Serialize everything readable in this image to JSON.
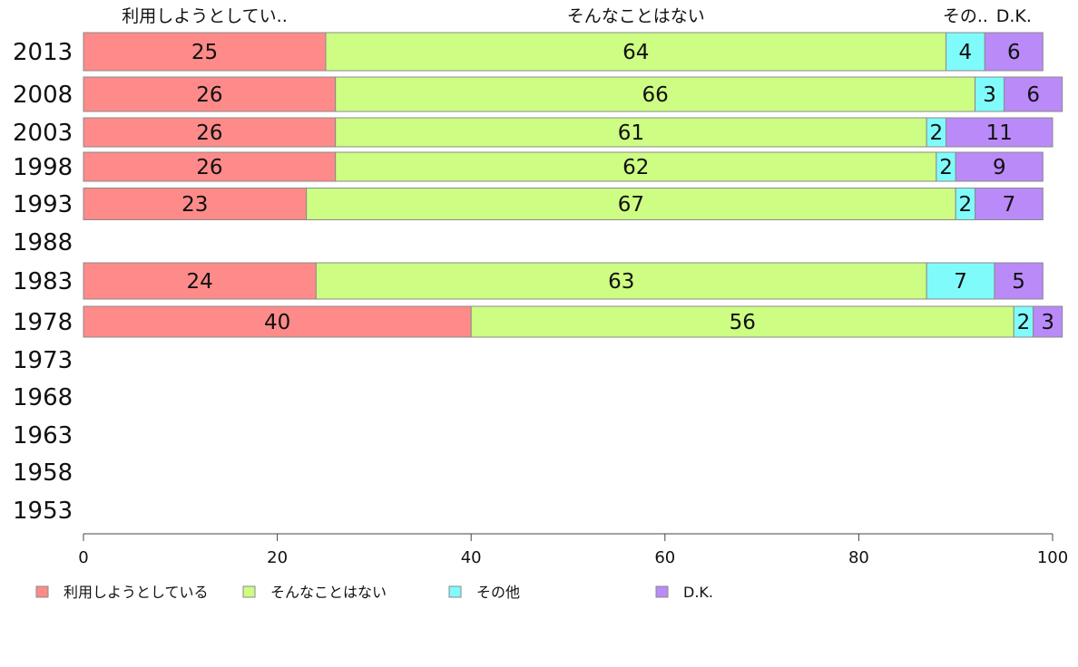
{
  "chart_data": {
    "type": "bar",
    "orientation": "horizontal",
    "stacked": true,
    "categories": [
      "2013",
      "2008",
      "2003",
      "1998",
      "1993",
      "1988",
      "1983",
      "1978",
      "1973",
      "1968",
      "1963",
      "1958",
      "1953"
    ],
    "series": [
      {
        "name": "利用しようとしている",
        "short_name": "利用しようとしてい..",
        "color": "#ff8a8a",
        "values": [
          25,
          26,
          26,
          26,
          23,
          null,
          24,
          40,
          null,
          null,
          null,
          null,
          null
        ]
      },
      {
        "name": "そんなことはない",
        "short_name": "そんなことはない",
        "color": "#cdfd82",
        "values": [
          64,
          66,
          61,
          62,
          67,
          null,
          63,
          56,
          null,
          null,
          null,
          null,
          null
        ]
      },
      {
        "name": "その他",
        "short_name": "その..",
        "color": "#80fbfb",
        "values": [
          4,
          3,
          2,
          2,
          2,
          null,
          7,
          2,
          null,
          null,
          null,
          null,
          null
        ]
      },
      {
        "name": "D.K.",
        "short_name": "D.K.",
        "color": "#b98af8",
        "values": [
          6,
          6,
          11,
          9,
          7,
          null,
          5,
          3,
          null,
          null,
          null,
          null,
          null
        ]
      }
    ],
    "xlim": [
      0,
      100
    ],
    "xticks": [
      0,
      20,
      40,
      60,
      80,
      100
    ],
    "title": "",
    "xlabel": "",
    "ylabel": "",
    "grid": false,
    "legend_position": "bottom"
  }
}
